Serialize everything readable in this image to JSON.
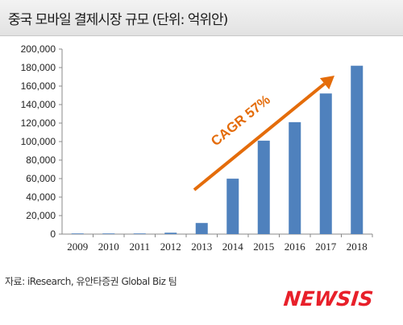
{
  "title": "중국 모바일 결제시장 규모 (단위: 억위안)",
  "source": "자료: iResearch, 유안타증권 Global Biz 팀",
  "logo": "NEWSIS",
  "colors": {
    "bar": "#4f81bd",
    "arrow": "#e46c0a",
    "logo": "#e8202a"
  },
  "chart_data": {
    "type": "bar",
    "categories": [
      "2009",
      "2010",
      "2011",
      "2012",
      "2013",
      "2014",
      "2015",
      "2016",
      "2017",
      "2018"
    ],
    "values": [
      150,
      200,
      480,
      1500,
      12000,
      59900,
      101000,
      121000,
      152000,
      182000
    ],
    "yticks": [
      "0",
      "20,000",
      "40,000",
      "60,000",
      "80,000",
      "100,000",
      "120,000",
      "140,000",
      "160,000",
      "180,000",
      "200,000"
    ],
    "ylim": [
      0,
      200000
    ],
    "annotation": "CAGR 57%",
    "grid": false
  }
}
